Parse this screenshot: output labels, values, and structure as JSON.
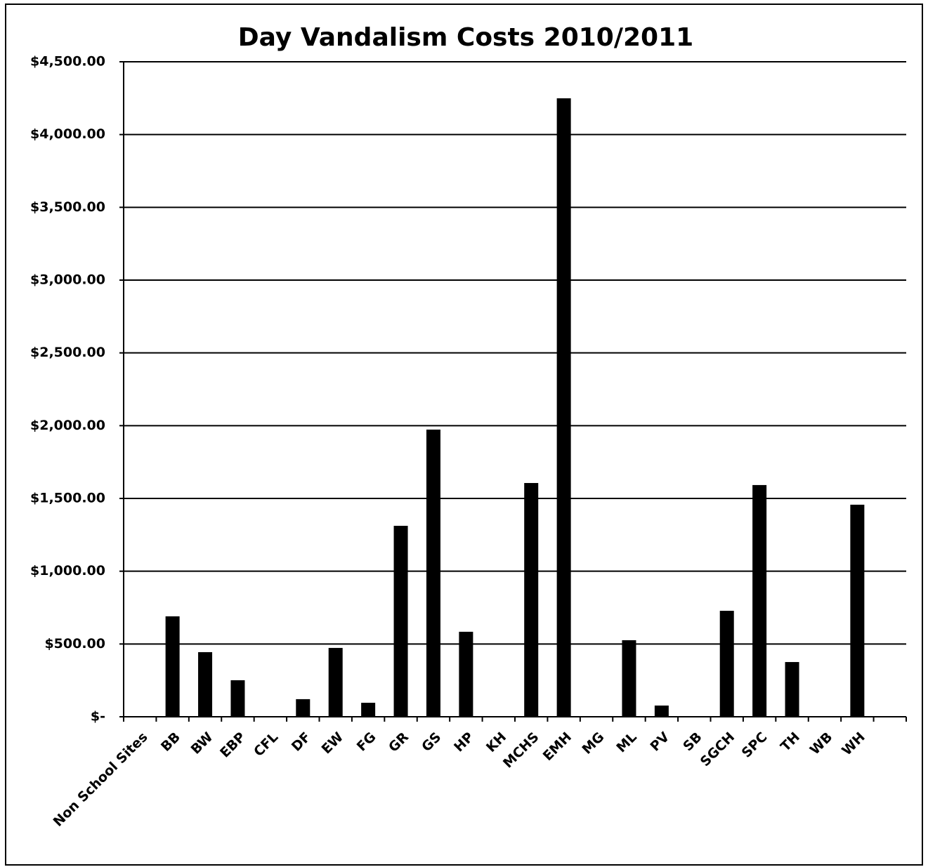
{
  "chart_data": {
    "type": "bar",
    "title": "Day Vandalism Costs 2010/2011",
    "categories": [
      "Non School Sites",
      "BB",
      "BW",
      "EBP",
      "CFL",
      "DF",
      "EW",
      "FG",
      "GR",
      "GS",
      "HP",
      "KH",
      "MCHS",
      "EMH",
      "MG",
      "ML",
      "PV",
      "SB",
      "SGCH",
      "SPC",
      "TH",
      "WB",
      "WH",
      null
    ],
    "values": [
      0,
      690,
      444,
      251,
      0,
      121,
      473,
      96,
      1312,
      1973,
      584,
      0,
      1606,
      4249,
      0,
      526,
      77,
      0,
      728,
      1592,
      376,
      0,
      1457,
      null
    ],
    "color": "#000000",
    "ylim": [
      0,
      4500
    ],
    "yticks": [
      {
        "value": 0,
        "label": "$-"
      },
      {
        "value": 500,
        "label": "$500.00"
      },
      {
        "value": 1000,
        "label": "$1,000.00"
      },
      {
        "value": 1500,
        "label": "$1,500.00"
      },
      {
        "value": 2000,
        "label": "$2,000.00"
      },
      {
        "value": 2500,
        "label": "$2,500.00"
      },
      {
        "value": 3000,
        "label": "$3,000.00"
      },
      {
        "value": 3500,
        "label": "$3,500.00"
      },
      {
        "value": 4000,
        "label": "$4,000.00"
      },
      {
        "value": 4500,
        "label": "$4,500.00"
      }
    ],
    "grid": true
  }
}
